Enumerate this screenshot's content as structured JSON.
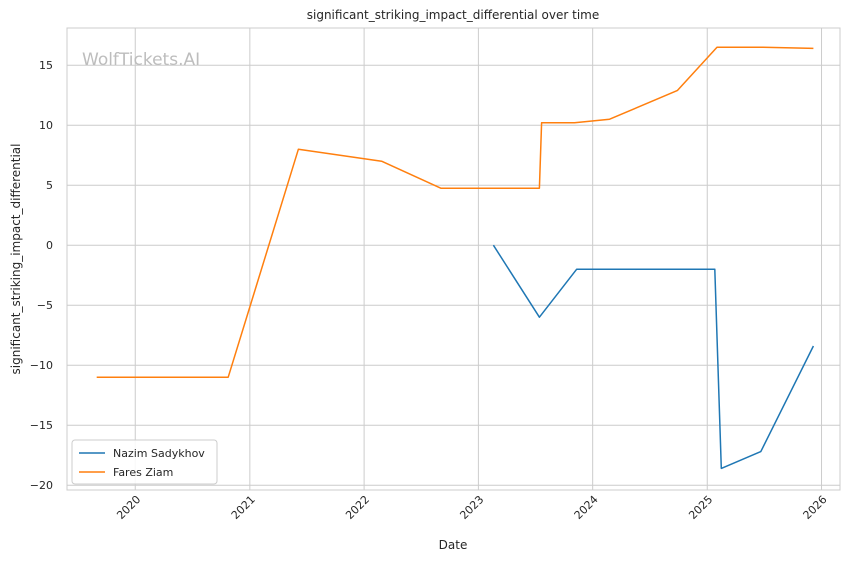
{
  "chart_data": {
    "type": "line",
    "title": "significant_striking_impact_differential over time",
    "xlabel": "Date",
    "ylabel": "significant_striking_impact_differential",
    "watermark": "WolfTickets.AI",
    "x_ticks": [
      "2020",
      "2021",
      "2022",
      "2023",
      "2024",
      "2025",
      "2026"
    ],
    "y_ticks": [
      "15",
      "10",
      "5",
      "0",
      "−5",
      "−10",
      "−15",
      "−20"
    ],
    "ylim": [
      -20.4,
      18.1
    ],
    "xlim": [
      "2019-05-28",
      "2026-03-01"
    ],
    "grid": true,
    "legend_position": "lower-left",
    "series": [
      {
        "name": "Nazim Sadykhov",
        "color": "#1f77b4",
        "points": [
          [
            "2023-02-18",
            0.0
          ],
          [
            "2023-07-15",
            -6.0
          ],
          [
            "2023-11-11",
            -2.0
          ],
          [
            "2025-01-25",
            -2.0
          ],
          [
            "2025-02-15",
            -18.6
          ],
          [
            "2025-06-21",
            -17.2
          ],
          [
            "2025-12-06",
            -8.4
          ]
        ]
      },
      {
        "name": "Fares Ziam",
        "color": "#ff7f0e",
        "points": [
          [
            "2019-08-31",
            -11.0
          ],
          [
            "2020-10-24",
            -11.0
          ],
          [
            "2021-06-05",
            8.0
          ],
          [
            "2022-02-26",
            7.0
          ],
          [
            "2022-09-03",
            4.75
          ],
          [
            "2023-07-15",
            4.75
          ],
          [
            "2023-07-22",
            10.2
          ],
          [
            "2023-11-04",
            10.2
          ],
          [
            "2024-02-24",
            10.5
          ],
          [
            "2024-09-28",
            12.9
          ],
          [
            "2025-02-01",
            16.5
          ],
          [
            "2025-06-28",
            16.5
          ],
          [
            "2025-12-06",
            16.4
          ]
        ]
      }
    ]
  }
}
